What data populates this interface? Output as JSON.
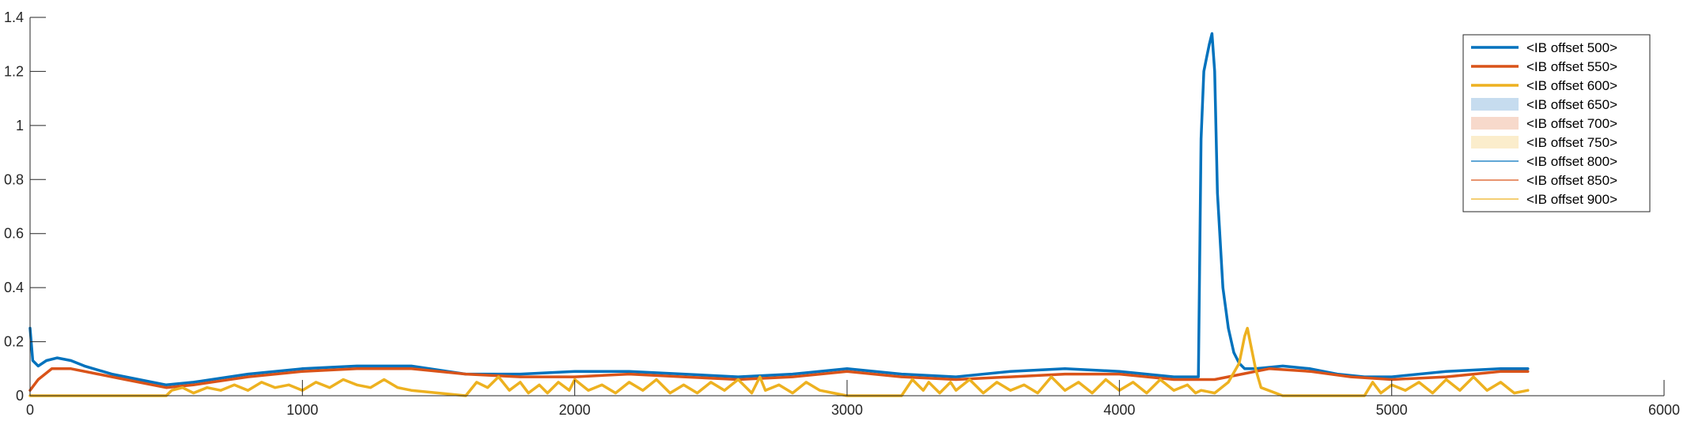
{
  "chart_data": {
    "type": "line",
    "title": "",
    "xlabel": "",
    "ylabel": "",
    "xlim": [
      0,
      6000
    ],
    "ylim": [
      0,
      1.4
    ],
    "xticks": [
      0,
      1000,
      2000,
      3000,
      4000,
      5000,
      6000
    ],
    "xtick_labels": [
      "0",
      "1000",
      "2000",
      "3000",
      "4000",
      "5000",
      "6000"
    ],
    "yticks": [
      0,
      0.2,
      0.4,
      0.6,
      0.8,
      1,
      1.2,
      1.4
    ],
    "ytick_labels": [
      "0",
      "0.2",
      "0.4",
      "0.6",
      "0.8",
      "1",
      "1.2",
      "1.4"
    ],
    "grid": false,
    "legend_placement": "top-right",
    "legend": [
      {
        "label": "<IB offset 500>",
        "style": "thick-line",
        "color": "#0072BD"
      },
      {
        "label": "<IB offset 550>",
        "style": "thick-line",
        "color": "#D95319"
      },
      {
        "label": "<IB offset 600>",
        "style": "thick-line",
        "color": "#EDB120"
      },
      {
        "label": "<IB offset 650>",
        "style": "patch",
        "color": "#C6DCEF"
      },
      {
        "label": "<IB offset 700>",
        "style": "patch",
        "color": "#F7D9CB"
      },
      {
        "label": "<IB offset 750>",
        "style": "patch",
        "color": "#FBEDCC"
      },
      {
        "label": "<IB offset 800>",
        "style": "thin-line",
        "color": "#0072BD"
      },
      {
        "label": "<IB offset 850>",
        "style": "thin-line",
        "color": "#D95319"
      },
      {
        "label": "<IB offset 900>",
        "style": "thin-line",
        "color": "#EDB120"
      }
    ],
    "series": [
      {
        "name": "<IB offset 500>",
        "color": "#0072BD",
        "x": [
          0,
          10,
          30,
          60,
          100,
          150,
          200,
          300,
          400,
          500,
          600,
          800,
          1000,
          1200,
          1400,
          1600,
          1800,
          2000,
          2200,
          2400,
          2600,
          2800,
          3000,
          3200,
          3400,
          3600,
          3800,
          4000,
          4200,
          4290,
          4300,
          4310,
          4320,
          4330,
          4340,
          4350,
          4360,
          4380,
          4400,
          4420,
          4440,
          4460,
          4480,
          4500,
          4600,
          4700,
          4800,
          4900,
          5000,
          5200,
          5400,
          5500
        ],
        "y": [
          0.25,
          0.13,
          0.11,
          0.13,
          0.14,
          0.13,
          0.11,
          0.08,
          0.06,
          0.04,
          0.05,
          0.08,
          0.1,
          0.11,
          0.11,
          0.08,
          0.08,
          0.09,
          0.09,
          0.08,
          0.07,
          0.08,
          0.1,
          0.08,
          0.07,
          0.09,
          0.1,
          0.09,
          0.07,
          0.07,
          0.95,
          1.2,
          1.25,
          1.3,
          1.34,
          1.2,
          0.75,
          0.4,
          0.25,
          0.16,
          0.12,
          0.1,
          0.1,
          0.1,
          0.11,
          0.1,
          0.08,
          0.07,
          0.07,
          0.09,
          0.1,
          0.1
        ]
      },
      {
        "name": "<IB offset 550>",
        "color": "#D95319",
        "x": [
          0,
          30,
          80,
          150,
          250,
          350,
          450,
          500,
          600,
          800,
          1000,
          1200,
          1400,
          1600,
          1800,
          2000,
          2200,
          2400,
          2600,
          2800,
          3000,
          3200,
          3400,
          3600,
          3800,
          4000,
          4200,
          4350,
          4450,
          4550,
          4700,
          4850,
          5000,
          5200,
          5400,
          5500
        ],
        "y": [
          0.02,
          0.06,
          0.1,
          0.1,
          0.08,
          0.06,
          0.04,
          0.03,
          0.04,
          0.07,
          0.09,
          0.1,
          0.1,
          0.08,
          0.07,
          0.07,
          0.08,
          0.07,
          0.06,
          0.07,
          0.09,
          0.07,
          0.06,
          0.07,
          0.08,
          0.08,
          0.06,
          0.06,
          0.08,
          0.1,
          0.09,
          0.07,
          0.06,
          0.07,
          0.09,
          0.09
        ]
      },
      {
        "name": "<IB offset 600>",
        "color": "#EDB120",
        "x": [
          0,
          500,
          520,
          560,
          600,
          650,
          700,
          750,
          800,
          850,
          900,
          950,
          1000,
          1050,
          1100,
          1150,
          1200,
          1250,
          1300,
          1350,
          1400,
          1500,
          1600,
          1640,
          1680,
          1720,
          1760,
          1800,
          1830,
          1870,
          1900,
          1940,
          1980,
          2000,
          2050,
          2100,
          2150,
          2200,
          2250,
          2300,
          2350,
          2400,
          2450,
          2500,
          2550,
          2600,
          2650,
          2680,
          2700,
          2750,
          2800,
          2850,
          2900,
          2950,
          3000,
          3100,
          3200,
          3240,
          3280,
          3300,
          3340,
          3380,
          3400,
          3450,
          3500,
          3550,
          3600,
          3650,
          3700,
          3750,
          3800,
          3850,
          3900,
          3950,
          4000,
          4050,
          4100,
          4150,
          4200,
          4250,
          4280,
          4300,
          4350,
          4400,
          4440,
          4460,
          4470,
          4480,
          4500,
          4520,
          4600,
          4800,
          4900,
          4930,
          4960,
          5000,
          5050,
          5100,
          5150,
          5200,
          5250,
          5300,
          5350,
          5400,
          5450,
          5500
        ],
        "y": [
          0,
          0,
          0.02,
          0.03,
          0.01,
          0.03,
          0.02,
          0.04,
          0.02,
          0.05,
          0.03,
          0.04,
          0.02,
          0.05,
          0.03,
          0.06,
          0.04,
          0.03,
          0.06,
          0.03,
          0.02,
          0.01,
          0,
          0.05,
          0.03,
          0.07,
          0.02,
          0.05,
          0.01,
          0.04,
          0.01,
          0.05,
          0.02,
          0.06,
          0.02,
          0.04,
          0.01,
          0.05,
          0.02,
          0.06,
          0.01,
          0.04,
          0.01,
          0.05,
          0.02,
          0.06,
          0.01,
          0.07,
          0.02,
          0.04,
          0.01,
          0.05,
          0.02,
          0.01,
          0,
          0,
          0,
          0.06,
          0.02,
          0.05,
          0.01,
          0.05,
          0.02,
          0.06,
          0.01,
          0.05,
          0.02,
          0.04,
          0.01,
          0.07,
          0.02,
          0.05,
          0.01,
          0.06,
          0.02,
          0.05,
          0.01,
          0.06,
          0.02,
          0.04,
          0.01,
          0.02,
          0.01,
          0.05,
          0.12,
          0.22,
          0.25,
          0.2,
          0.1,
          0.03,
          0,
          0,
          0,
          0.05,
          0.01,
          0.04,
          0.02,
          0.05,
          0.01,
          0.06,
          0.02,
          0.07,
          0.02,
          0.05,
          0.01,
          0.02
        ]
      }
    ]
  }
}
